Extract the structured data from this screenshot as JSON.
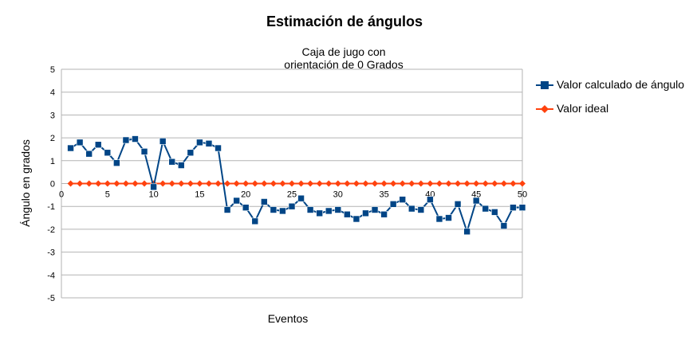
{
  "chart_data": {
    "type": "line",
    "title": "Estimación de ángulos",
    "subtitle_lines": [
      "Caja de jugo con",
      "orientación de 0 Grados"
    ],
    "xlabel": "Eventos",
    "ylabel": "Ángulo en grados",
    "xlim": [
      0,
      50
    ],
    "ylim": [
      -5,
      5
    ],
    "x_ticks": [
      0,
      5,
      10,
      15,
      20,
      25,
      30,
      35,
      40,
      45,
      50
    ],
    "y_ticks": [
      5,
      4,
      3,
      2,
      1,
      0,
      -1,
      -2,
      -3,
      -4,
      -5
    ],
    "grid": "horizontal",
    "legend_position": "right",
    "x": [
      1,
      2,
      3,
      4,
      5,
      6,
      7,
      8,
      9,
      10,
      11,
      12,
      13,
      14,
      15,
      16,
      17,
      18,
      19,
      20,
      21,
      22,
      23,
      24,
      25,
      26,
      27,
      28,
      29,
      30,
      31,
      32,
      33,
      34,
      35,
      36,
      37,
      38,
      39,
      40,
      41,
      42,
      43,
      44,
      45,
      46,
      47,
      48,
      49,
      50
    ],
    "series": [
      {
        "name": "Valor calculado de ángulo",
        "color": "#004586",
        "marker": "square",
        "values": [
          1.55,
          1.8,
          1.3,
          1.7,
          1.35,
          0.9,
          1.9,
          1.95,
          1.4,
          -0.15,
          1.85,
          0.95,
          0.8,
          1.35,
          1.8,
          1.75,
          1.55,
          -1.15,
          -0.75,
          -1.05,
          -1.65,
          -0.8,
          -1.15,
          -1.2,
          -1.0,
          -0.65,
          -1.15,
          -1.3,
          -1.2,
          -1.15,
          -1.35,
          -1.55,
          -1.3,
          -1.15,
          -1.35,
          -0.9,
          -0.7,
          -1.1,
          -1.15,
          -0.7,
          -1.55,
          -1.5,
          -0.9,
          -2.1,
          -0.75,
          -1.1,
          -1.25,
          -1.85,
          -1.05,
          -1.05
        ]
      },
      {
        "name": "Valor ideal",
        "color": "#ff420e",
        "marker": "diamond",
        "values": [
          0,
          0,
          0,
          0,
          0,
          0,
          0,
          0,
          0,
          0,
          0,
          0,
          0,
          0,
          0,
          0,
          0,
          0,
          0,
          0,
          0,
          0,
          0,
          0,
          0,
          0,
          0,
          0,
          0,
          0,
          0,
          0,
          0,
          0,
          0,
          0,
          0,
          0,
          0,
          0,
          0,
          0,
          0,
          0,
          0,
          0,
          0,
          0,
          0,
          0
        ]
      }
    ]
  }
}
